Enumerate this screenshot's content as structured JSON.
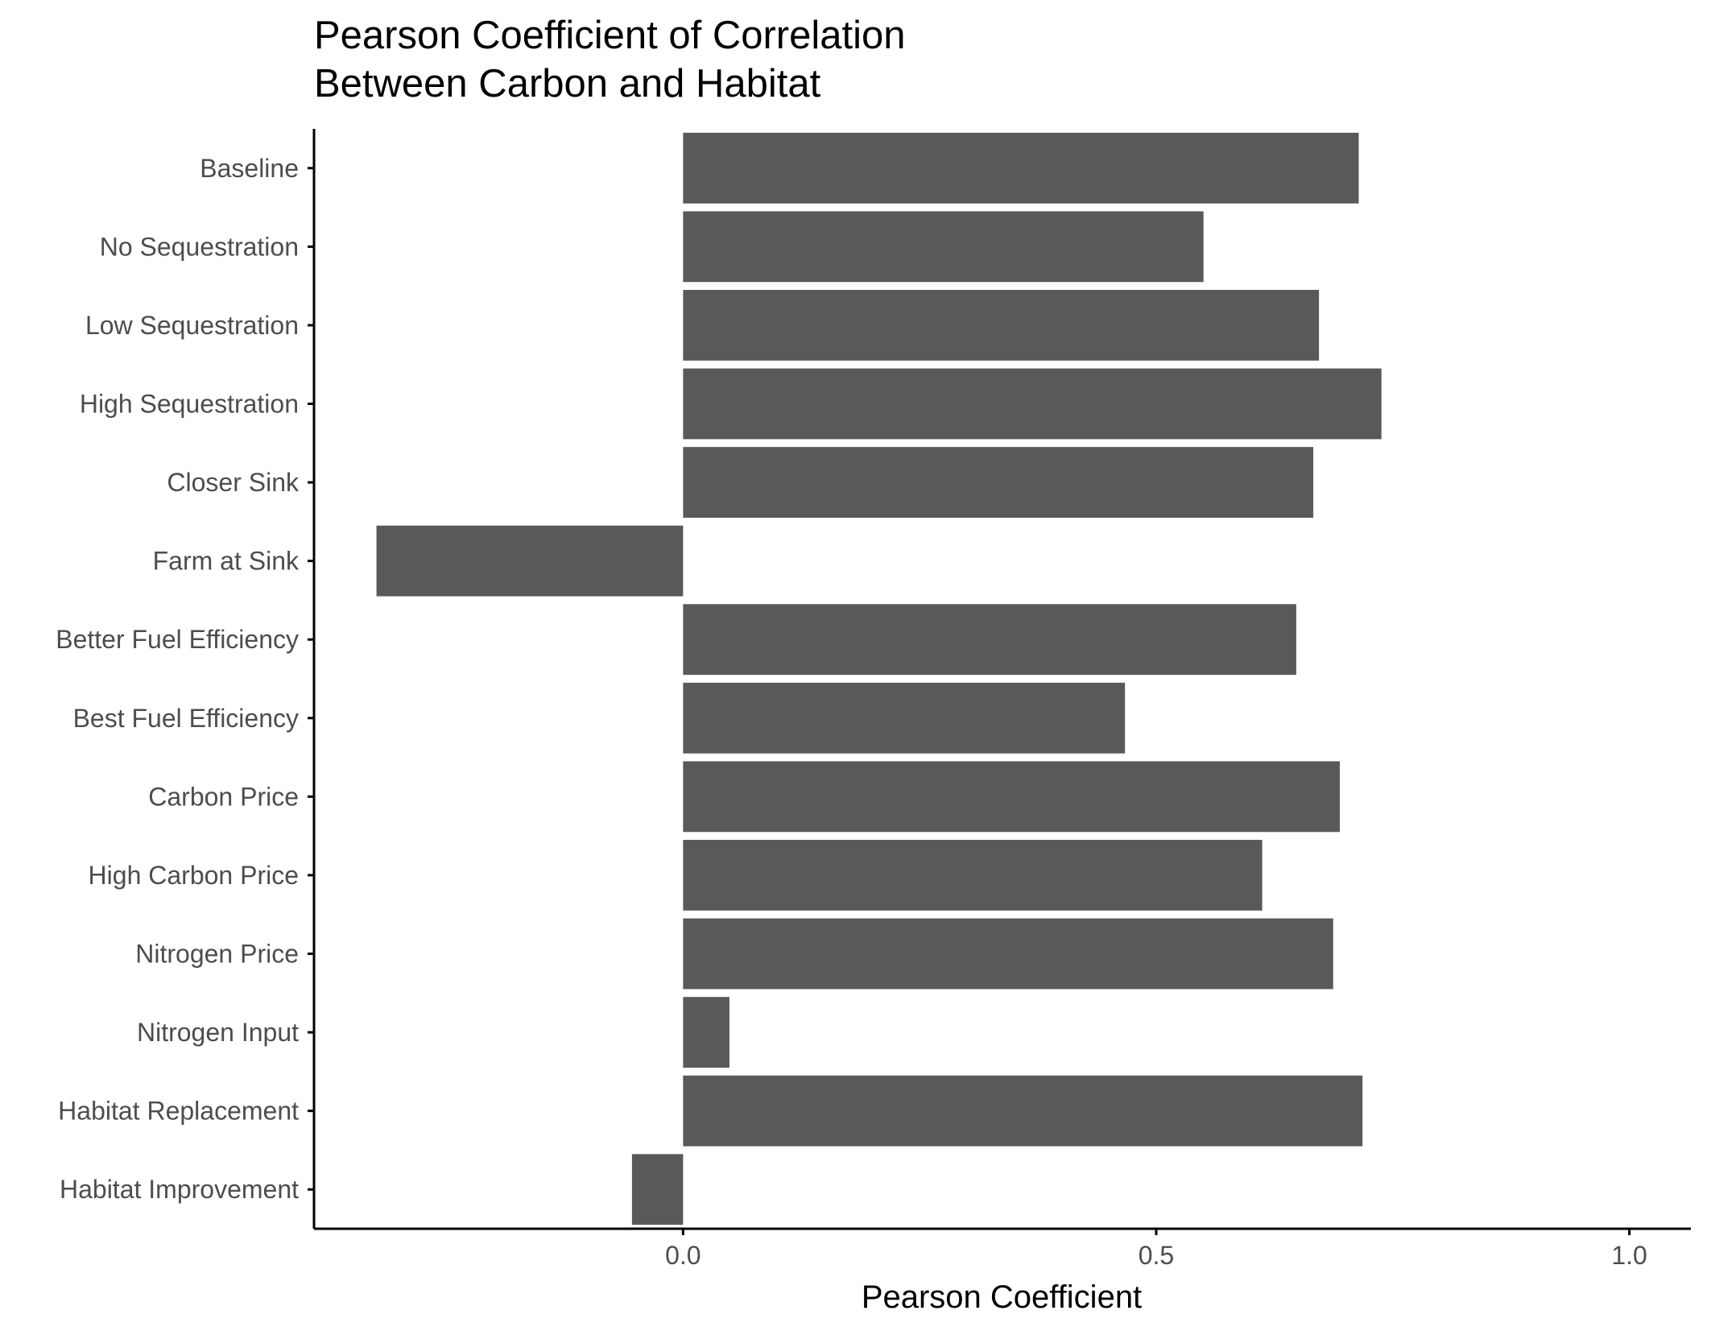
{
  "chart_data": {
    "type": "bar",
    "orientation": "horizontal",
    "title": [
      "Pearson Coefficient of Correlation",
      "Between Carbon and Habitat"
    ],
    "xlabel": "Pearson Coefficient",
    "ylabel": "",
    "categories": [
      "Baseline",
      "No Sequestration",
      "Low Sequestration",
      "High Sequestration",
      "Closer Sink",
      "Farm at Sink",
      "Better Fuel Efficiency",
      "Best Fuel Efficiency",
      "Carbon Price",
      "High Carbon Price",
      "Nitrogen Price",
      "Nitrogen Input",
      "Habitat Replacement",
      "Habitat Improvement"
    ],
    "values": [
      0.714,
      0.55,
      0.672,
      0.738,
      0.666,
      -0.324,
      0.648,
      0.467,
      0.694,
      0.612,
      0.687,
      0.049,
      0.718,
      -0.054
    ],
    "xlim": [
      -0.39,
      1.065
    ],
    "xticks": [
      0.0,
      0.5,
      1.0
    ],
    "xtick_labels": [
      "0.0",
      "0.5",
      "1.0"
    ],
    "grid": false,
    "bar_color": "#595959",
    "axis_color": "#000000",
    "label_color": "#4d4d4d"
  }
}
